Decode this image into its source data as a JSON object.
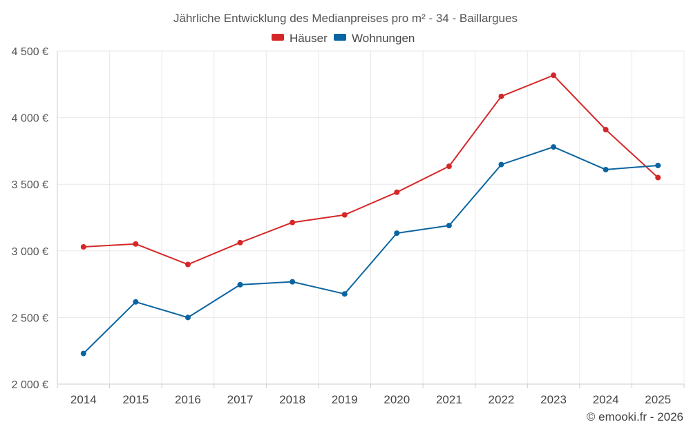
{
  "chart_data": {
    "type": "line",
    "title": "Jährliche Entwicklung des Medianpreises pro m² - 34 - Baillargues",
    "categories": [
      "2014",
      "2015",
      "2016",
      "2017",
      "2018",
      "2019",
      "2020",
      "2021",
      "2022",
      "2023",
      "2024",
      "2025"
    ],
    "series": [
      {
        "name": "Häuser",
        "color": "#d62728",
        "values": [
          3030,
          3052,
          2898,
          3062,
          3213,
          3270,
          3440,
          3635,
          4160,
          4318,
          3910,
          3550
        ]
      },
      {
        "name": "Wohnungen",
        "color": "#0a64a0",
        "values": [
          2230,
          2617,
          2500,
          2746,
          2768,
          2677,
          3133,
          3190,
          3648,
          3780,
          3610,
          3641
        ]
      }
    ],
    "ylim": [
      2000,
      4500
    ],
    "yticks": [
      2000,
      2500,
      3000,
      3500,
      4000,
      4500
    ],
    "ytick_labels": [
      "2 000 €",
      "2 500 €",
      "3 000 €",
      "3 500 €",
      "4 000 €",
      "4 500 €"
    ],
    "xlabel": "",
    "ylabel": "",
    "legend_position": "top-center",
    "grid": true
  },
  "credit": "© emooki.fr - 2026"
}
